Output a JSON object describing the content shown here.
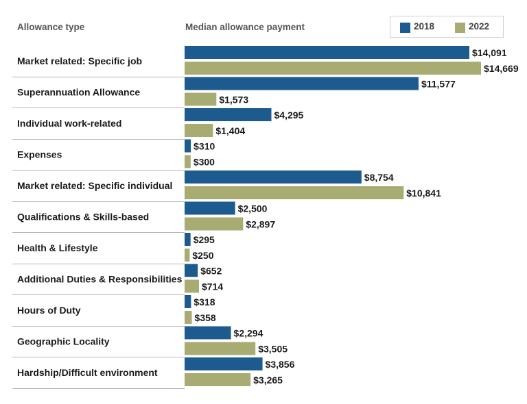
{
  "header": {
    "category_label": "Allowance type",
    "value_label": "Median allowance payment"
  },
  "colors": {
    "s2018": "#1d5a8e",
    "s2022": "#a8ab72",
    "divider": "#b5b5b5"
  },
  "chart_data": {
    "type": "bar",
    "orientation": "horizontal",
    "title": "",
    "xlabel": "Median allowance payment",
    "ylabel": "Allowance type",
    "legend_position": "top-right",
    "xlim": [
      0,
      14669
    ],
    "categories": [
      "Market related: Specific job",
      "Superannuation Allowance",
      "Individual work-related",
      "Expenses",
      "Market related: Specific individual",
      "Qualifications & Skills-based",
      "Health & Lifestyle",
      "Additional Duties & Responsibilities",
      "Hours of Duty",
      "Geographic Locality",
      "Hardship/Difficult environment"
    ],
    "series": [
      {
        "name": "2018",
        "values": [
          14091,
          11577,
          4295,
          310,
          8754,
          2500,
          295,
          652,
          318,
          2294,
          3856
        ],
        "labels": [
          "$14,091",
          "$11,577",
          "$4,295",
          "$310",
          "$8,754",
          "$2,500",
          "$295",
          "$652",
          "$318",
          "$2,294",
          "$3,856"
        ]
      },
      {
        "name": "2022",
        "values": [
          14669,
          1573,
          1404,
          300,
          10841,
          2897,
          250,
          714,
          358,
          3505,
          3265
        ],
        "labels": [
          "$14,669",
          "$1,573",
          "$1,404",
          "$300",
          "$10,841",
          "$2,897",
          "$250",
          "$714",
          "$358",
          "$3,505",
          "$3,265"
        ]
      }
    ]
  }
}
